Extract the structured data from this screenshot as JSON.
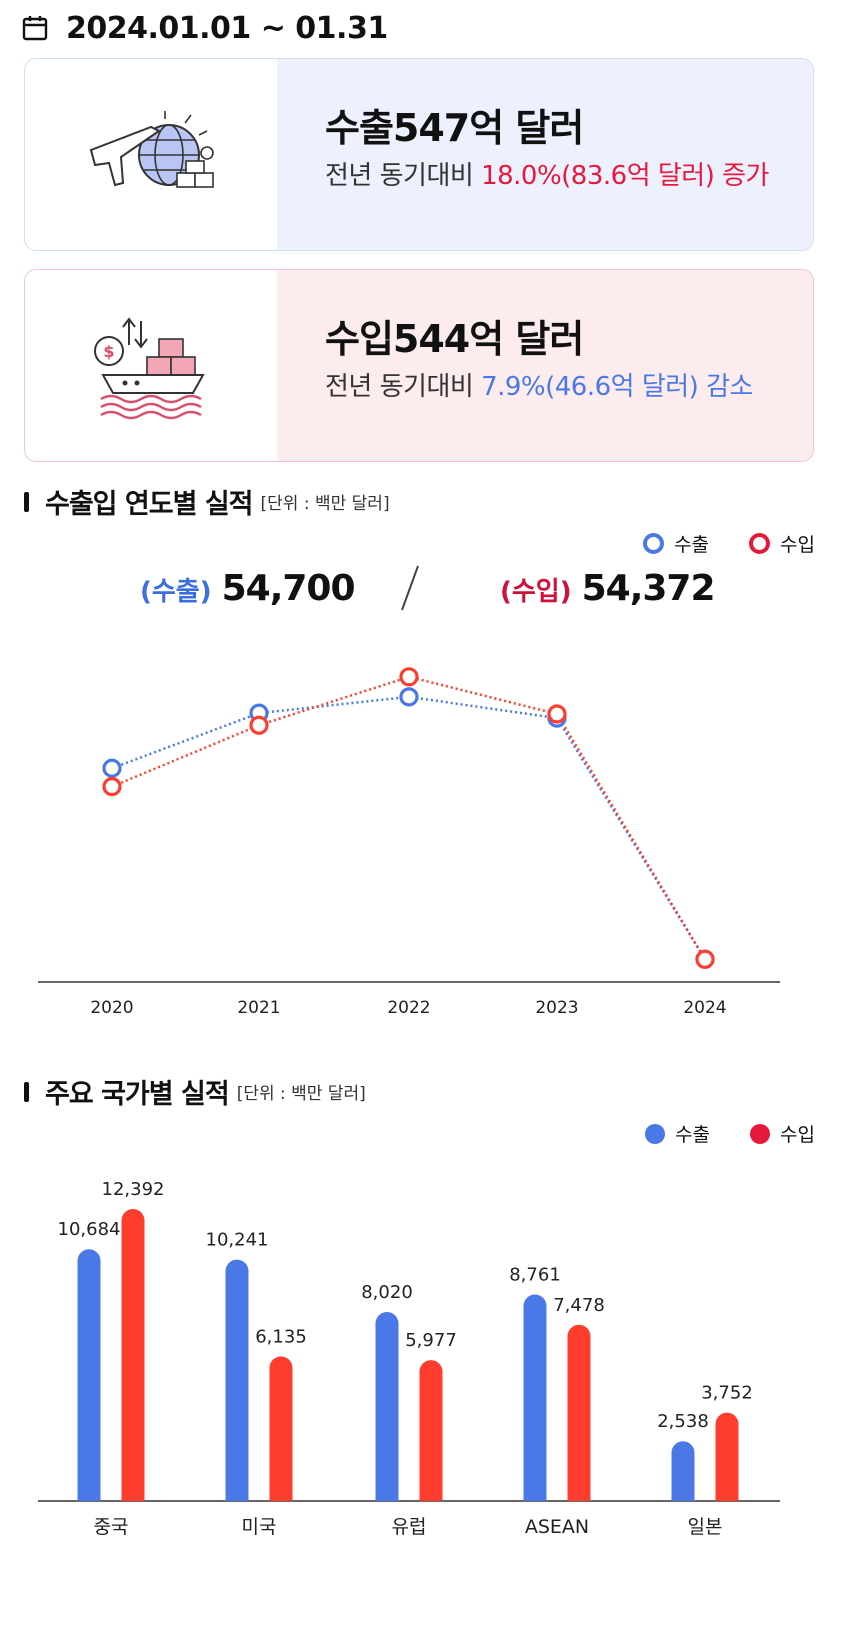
{
  "period": {
    "text": "2024.01.01 ~ 01.31"
  },
  "export_card": {
    "icon": "plane-globe-icon",
    "title": "수출547억 달러",
    "sub_prefix": "전년 동기대비 ",
    "sub_highlight": "18.0%(83.6억 달러) 증가"
  },
  "import_card": {
    "icon": "cargo-ship-icon",
    "title": "수입544억 달러",
    "sub_prefix": "전년 동기대비 ",
    "sub_highlight": "7.9%(46.6억 달러) 감소"
  },
  "yearly_section": {
    "title": "수출입 연도별 실적",
    "unit": "[단위 : 백만 달러]",
    "legend_export": "수출",
    "legend_import": "수입",
    "total_export_label": "(수출)",
    "total_export_value": "54,700",
    "total_import_label": "(수입)",
    "total_import_value": "54,372"
  },
  "country_section": {
    "title": "주요 국가별 실적",
    "unit": "[단위 : 백만 달러]",
    "legend_export": "수출",
    "legend_import": "수입"
  },
  "colors": {
    "export": "#4a78e6",
    "import": "#ff3d2e",
    "export_text": "#3b6fe0",
    "import_text": "#cf1038"
  },
  "chart_data": [
    {
      "type": "line",
      "x": [
        "2020",
        "2021",
        "2022",
        "2023",
        "2024"
      ],
      "series": [
        {
          "name": "수출",
          "values": [
            512000,
            644000,
            683000,
            632000,
            54700
          ]
        },
        {
          "name": "수입",
          "values": [
            468000,
            615000,
            731000,
            642000,
            54372
          ]
        }
      ],
      "ylim": [
        0,
        800000
      ],
      "grid": false,
      "legend": "top-right"
    },
    {
      "type": "bar",
      "categories": [
        "중국",
        "미국",
        "유럽",
        "ASEAN",
        "일본"
      ],
      "series": [
        {
          "name": "수출",
          "values": [
            10684,
            10241,
            8020,
            8761,
            2538
          ]
        },
        {
          "name": "수입",
          "values": [
            12392,
            6135,
            5977,
            7478,
            3752
          ]
        }
      ],
      "value_labels": [
        [
          "10,684",
          "10,241",
          "8,020",
          "8,761",
          "2,538"
        ],
        [
          "12,392",
          "6,135",
          "5,977",
          "7,478",
          "3,752"
        ]
      ],
      "ylim": [
        0,
        13000
      ],
      "grid": false,
      "legend": "top-right"
    }
  ]
}
